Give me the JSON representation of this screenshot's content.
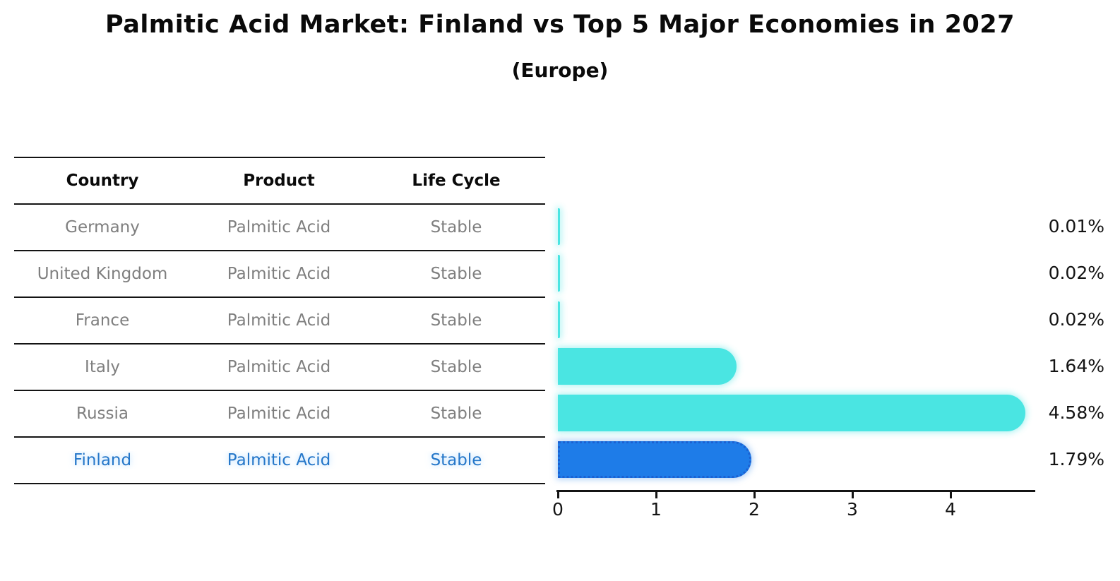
{
  "title": "Palmitic Acid Market: Finland vs Top 5 Major Economies in 2027",
  "subtitle": "(Europe)",
  "table": {
    "headers": [
      "Country",
      "Product",
      "Life Cycle"
    ],
    "rows": [
      {
        "country": "Germany",
        "product": "Palmitic Acid",
        "life_cycle": "Stable",
        "highlight": false
      },
      {
        "country": "United Kingdom",
        "product": "Palmitic Acid",
        "life_cycle": "Stable",
        "highlight": false
      },
      {
        "country": "France",
        "product": "Palmitic Acid",
        "life_cycle": "Stable",
        "highlight": false
      },
      {
        "country": "Italy",
        "product": "Palmitic Acid",
        "life_cycle": "Stable",
        "highlight": false
      },
      {
        "country": "Russia",
        "product": "Palmitic Acid",
        "life_cycle": "Stable",
        "highlight": false
      },
      {
        "country": "Finland",
        "product": "Palmitic Acid",
        "life_cycle": "Stable",
        "highlight": true
      }
    ]
  },
  "chart_data": {
    "type": "bar",
    "orientation": "horizontal",
    "title": "Palmitic Acid Market: Finland vs Top 5 Major Economies in 2027 (Europe)",
    "categories": [
      "Germany",
      "United Kingdom",
      "France",
      "Italy",
      "Russia",
      "Finland"
    ],
    "values": [
      0.01,
      0.02,
      0.02,
      1.64,
      4.58,
      1.79
    ],
    "value_labels": [
      "0.01%",
      "0.02%",
      "0.02%",
      "1.64%",
      "4.58%",
      "1.79%"
    ],
    "highlight_index": 5,
    "xlabel": "",
    "ylabel": "",
    "xlim": [
      0,
      4.85
    ],
    "xticks": [
      "0",
      "1",
      "2",
      "3",
      "4"
    ],
    "grid": false,
    "legend": false
  },
  "colors": {
    "bar_cyan": "#4ae5e2",
    "bar_blue": "#1e7ce8",
    "bar_blue_border": "#1b61d2",
    "highlight_text": "#2577c9",
    "table_text_gray": "#7f7f7f",
    "axis_black": "#141414"
  }
}
